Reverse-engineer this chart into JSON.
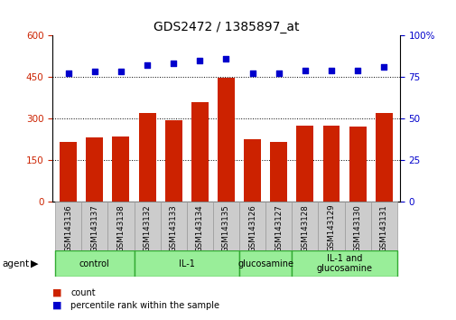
{
  "title": "GDS2472 / 1385897_at",
  "samples": [
    "GSM143136",
    "GSM143137",
    "GSM143138",
    "GSM143132",
    "GSM143133",
    "GSM143134",
    "GSM143135",
    "GSM143126",
    "GSM143127",
    "GSM143128",
    "GSM143129",
    "GSM143130",
    "GSM143131"
  ],
  "counts": [
    215,
    230,
    235,
    320,
    295,
    360,
    445,
    225,
    215,
    275,
    275,
    270,
    320
  ],
  "percentiles": [
    77,
    78,
    78,
    82,
    83,
    85,
    86,
    77,
    77,
    79,
    79,
    79,
    81
  ],
  "groups": [
    {
      "label": "control",
      "start": 0,
      "end": 3
    },
    {
      "label": "IL-1",
      "start": 3,
      "end": 7
    },
    {
      "label": "glucosamine",
      "start": 7,
      "end": 9
    },
    {
      "label": "IL-1 and\nglucosamine",
      "start": 9,
      "end": 13
    }
  ],
  "bar_color": "#cc2200",
  "dot_color": "#0000cc",
  "left_ylim": [
    0,
    600
  ],
  "left_yticks": [
    0,
    150,
    300,
    450,
    600
  ],
  "right_ylim": [
    0,
    100
  ],
  "right_yticks": [
    0,
    25,
    50,
    75,
    100
  ],
  "group_fill": "#99ee99",
  "group_edge": "#33aa33",
  "tick_bg": "#cccccc",
  "tick_edge": "#999999"
}
